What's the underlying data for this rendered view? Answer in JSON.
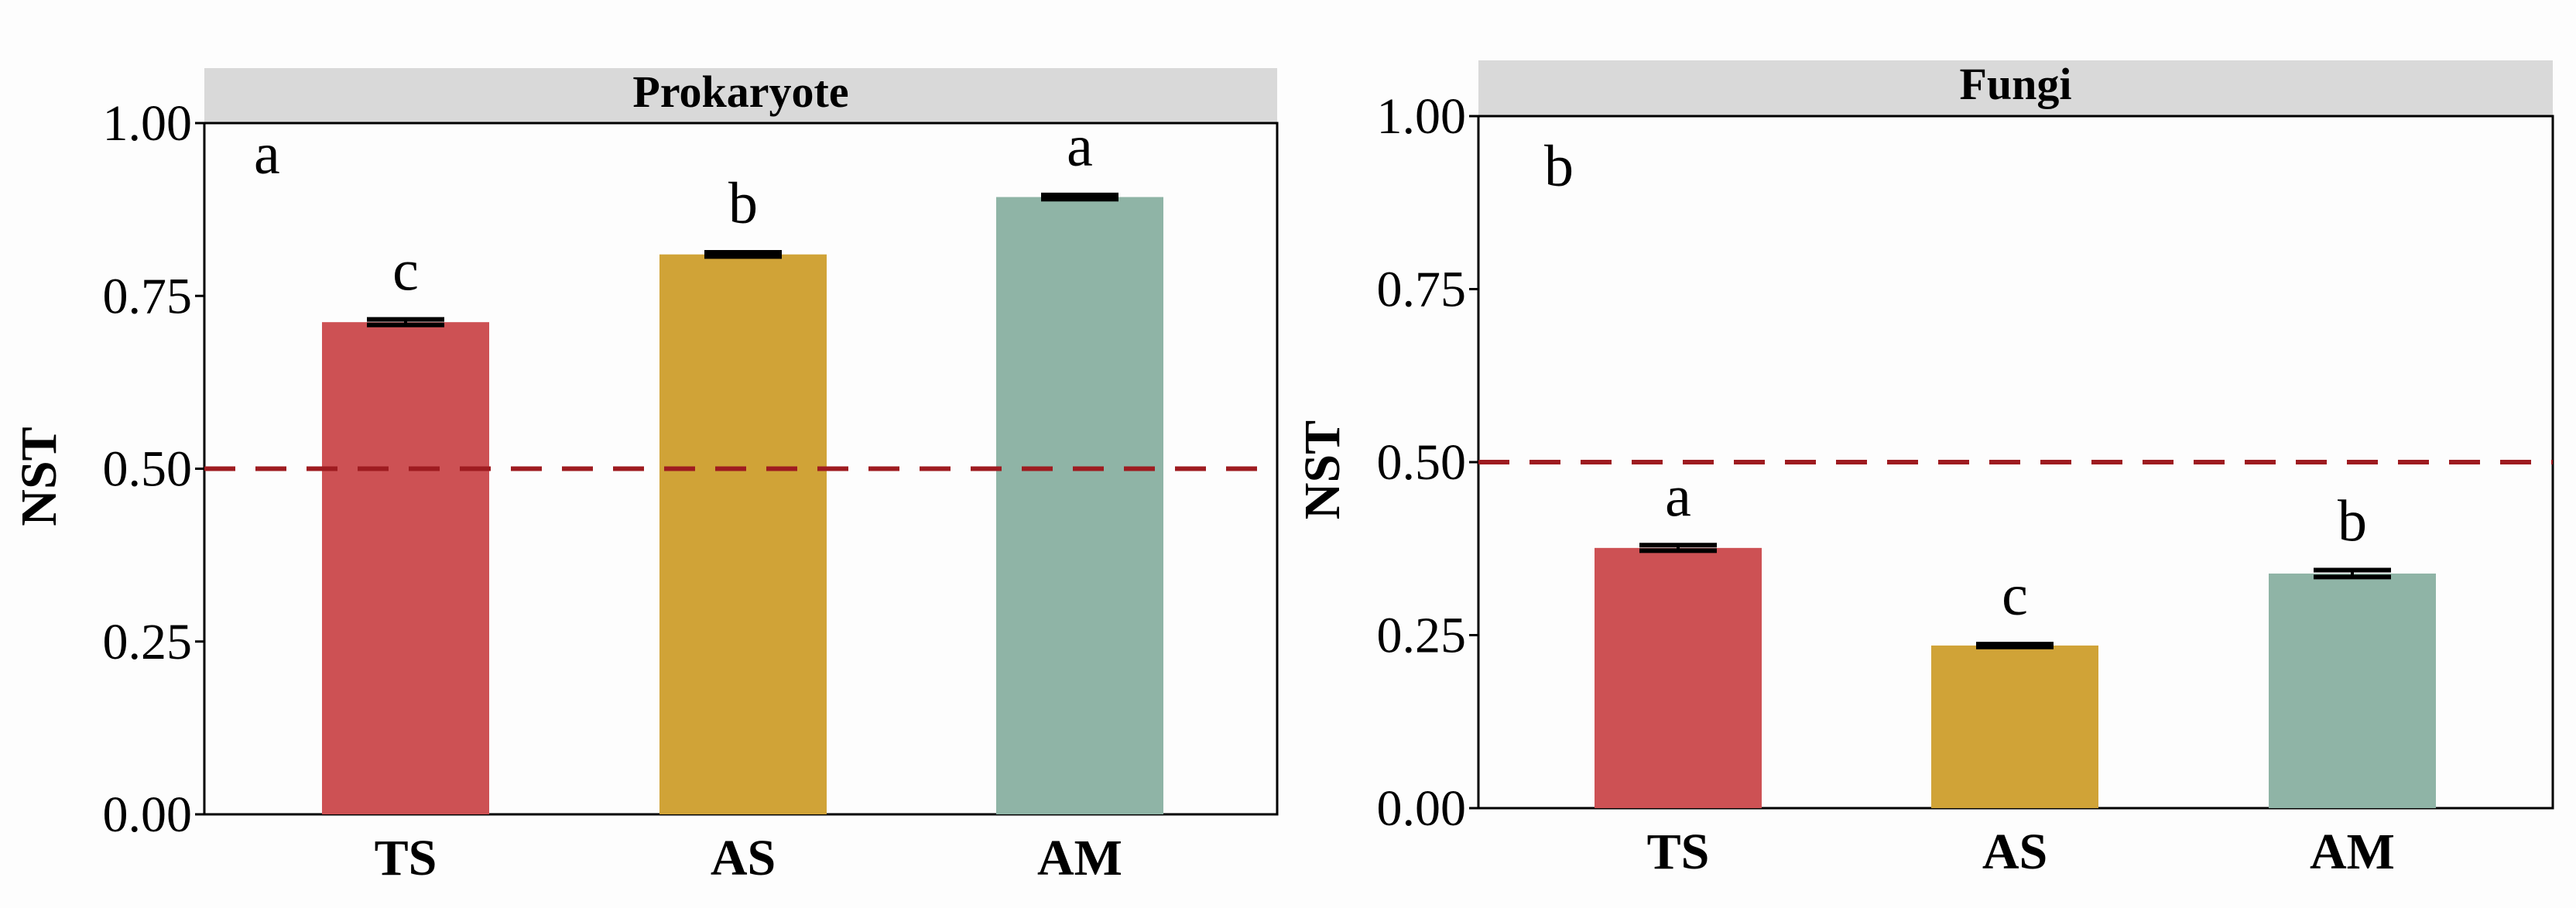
{
  "chart_data": [
    {
      "type": "bar",
      "panel_tag": "a",
      "title": "Prokaryote",
      "ylabel": "NST",
      "xlabel": "",
      "categories": [
        "TS",
        "AS",
        "AM"
      ],
      "values": [
        0.712,
        0.81,
        0.893
      ],
      "errors": [
        0.004,
        0.003,
        0.003
      ],
      "significance_letters": [
        "c",
        "b",
        "a"
      ],
      "colors": [
        "#CD5154",
        "#D0A337",
        "#8FB4A6"
      ],
      "ylim": [
        0,
        1.0
      ],
      "yticks": [
        "0.00",
        "0.25",
        "0.50",
        "0.75",
        "1.00"
      ],
      "reference_line": {
        "y": 0.5,
        "style": "dashed",
        "color": "#9E1B20"
      },
      "grid": false
    },
    {
      "type": "bar",
      "panel_tag": "b",
      "title": "Fungi",
      "ylabel": "NST",
      "xlabel": "",
      "categories": [
        "TS",
        "AS",
        "AM"
      ],
      "values": [
        0.376,
        0.235,
        0.339
      ],
      "errors": [
        0.004,
        0.002,
        0.005
      ],
      "significance_letters": [
        "a",
        "c",
        "b"
      ],
      "colors": [
        "#CD5154",
        "#D0A337",
        "#8FB4A6"
      ],
      "ylim": [
        0,
        1.0
      ],
      "yticks": [
        "0.00",
        "0.25",
        "0.50",
        "0.75",
        "1.00"
      ],
      "reference_line": {
        "y": 0.5,
        "style": "dashed",
        "color": "#9E1B20"
      },
      "grid": false
    }
  ]
}
